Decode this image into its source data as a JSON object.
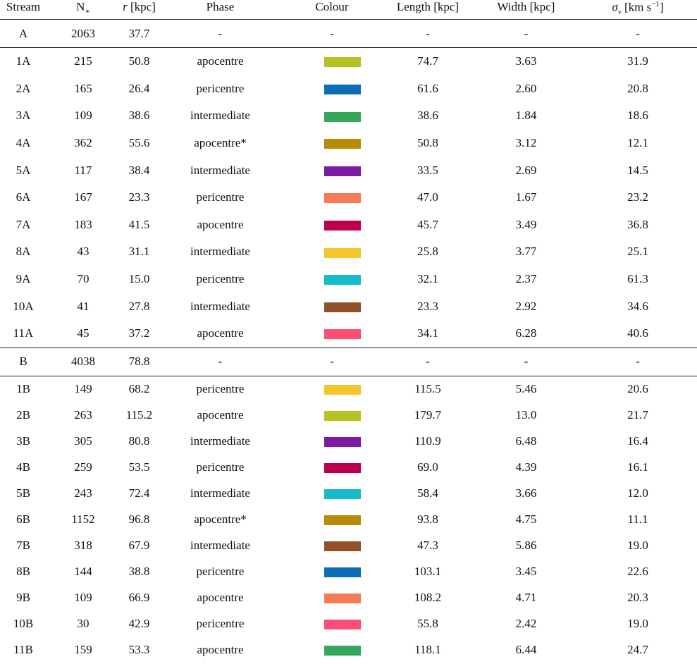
{
  "table": {
    "header": [
      [
        {
          "t": "Stream"
        }
      ],
      [
        {
          "t": "N"
        },
        {
          "t": "∗",
          "style": "sub"
        }
      ],
      [
        {
          "t": "r",
          "style": "i"
        },
        {
          "t": " [kpc]"
        }
      ],
      [
        {
          "t": "Phase"
        }
      ],
      [
        {
          "t": "Colour"
        }
      ],
      [
        {
          "t": "Length [kpc]"
        }
      ],
      [
        {
          "t": "Width [kpc]"
        }
      ],
      [
        {
          "t": "σ",
          "style": "i"
        },
        {
          "t": "v",
          "style": "sub-i"
        },
        {
          "t": " [km s"
        },
        {
          "t": "−1",
          "style": "sup"
        },
        {
          "t": "]"
        }
      ]
    ],
    "groups": [
      {
        "summary": [
          "A",
          "2063",
          "37.7",
          "-",
          "-",
          "-",
          "-",
          "-"
        ],
        "rows": [
          [
            "1A",
            "215",
            "50.8",
            "apocentre",
            "#b5c21f",
            "74.7",
            "3.63",
            "31.9"
          ],
          [
            "2A",
            "165",
            "26.4",
            "pericentre",
            "#0a6db5",
            "61.6",
            "2.60",
            "20.8"
          ],
          [
            "3A",
            "109",
            "38.6",
            "intermediate",
            "#35a65a",
            "38.6",
            "1.84",
            "18.6"
          ],
          [
            "4A",
            "362",
            "55.6",
            "apocentre*",
            "#b88a06",
            "50.8",
            "3.12",
            "12.1"
          ],
          [
            "5A",
            "117",
            "38.4",
            "intermediate",
            "#7b1ba3",
            "33.5",
            "2.69",
            "14.5"
          ],
          [
            "6A",
            "167",
            "23.3",
            "pericentre",
            "#f57a55",
            "47.0",
            "1.67",
            "23.2"
          ],
          [
            "7A",
            "183",
            "41.5",
            "apocentre",
            "#bb0050",
            "45.7",
            "3.49",
            "36.8"
          ],
          [
            "8A",
            "43",
            "31.1",
            "intermediate",
            "#f5c52e",
            "25.8",
            "3.77",
            "25.1"
          ],
          [
            "9A",
            "70",
            "15.0",
            "pericentre",
            "#17bccc",
            "32.1",
            "2.37",
            "61.3"
          ],
          [
            "10A",
            "41",
            "27.8",
            "intermediate",
            "#925028",
            "23.3",
            "2.92",
            "34.6"
          ],
          [
            "11A",
            "45",
            "37.2",
            "apocentre",
            "#fc4e74",
            "34.1",
            "6.28",
            "40.6"
          ]
        ]
      },
      {
        "summary": [
          "B",
          "4038",
          "78.8",
          "-",
          "-",
          "-",
          "-",
          "-"
        ],
        "rows": [
          [
            "1B",
            "149",
            "68.2",
            "pericentre",
            "#f5c52e",
            "115.5",
            "5.46",
            "20.6"
          ],
          [
            "2B",
            "263",
            "115.2",
            "apocentre",
            "#b5c21f",
            "179.7",
            "13.0",
            "21.7"
          ],
          [
            "3B",
            "305",
            "80.8",
            "intermediate",
            "#7b1ba3",
            "110.9",
            "6.48",
            "16.4"
          ],
          [
            "4B",
            "259",
            "53.5",
            "pericentre",
            "#bb0050",
            "69.0",
            "4.39",
            "16.1"
          ],
          [
            "5B",
            "243",
            "72.4",
            "intermediate",
            "#17bccc",
            "58.4",
            "3.66",
            "12.0"
          ],
          [
            "6B",
            "1152",
            "96.8",
            "apocentre*",
            "#b88a06",
            "93.8",
            "4.75",
            "11.1"
          ],
          [
            "7B",
            "318",
            "67.9",
            "intermediate",
            "#925028",
            "47.3",
            "5.86",
            "19.0"
          ],
          [
            "8B",
            "144",
            "38.8",
            "pericentre",
            "#0a6db5",
            "103.1",
            "3.45",
            "22.6"
          ],
          [
            "9B",
            "109",
            "66.9",
            "apocentre",
            "#f57a55",
            "108.2",
            "4.71",
            "20.3"
          ],
          [
            "10B",
            "30",
            "42.9",
            "pericentre",
            "#fc4e74",
            "55.8",
            "2.42",
            "19.0"
          ],
          [
            "11B",
            "159",
            "53.3",
            "apocentre",
            "#35a65a",
            "118.1",
            "6.44",
            "24.7"
          ]
        ]
      }
    ]
  }
}
